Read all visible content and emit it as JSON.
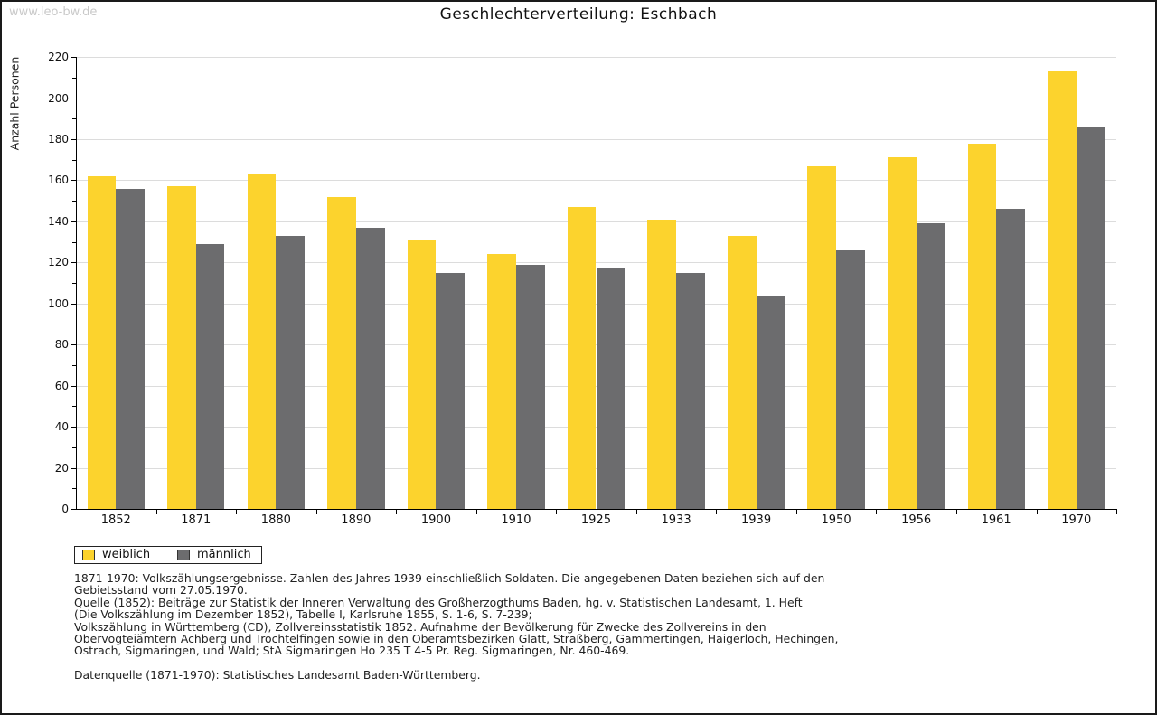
{
  "watermark": "www.leo-bw.de",
  "title": "Geschlechterverteilung: Eschbach",
  "y_axis_label": "Anzahl Personen",
  "colors": {
    "weiblich": "#fcd32d",
    "maennlich": "#6c6c6e",
    "gridline": "#dcdcdc",
    "axis": "#000000",
    "watermark": "#c9c9c9"
  },
  "legend": {
    "weiblich_label": "weiblich",
    "maennlich_label": "männlich"
  },
  "footnotes": [
    "1871-1970: Volkszählungsergebnisse. Zahlen des Jahres 1939 einschließlich Soldaten. Die angegebenen Daten beziehen sich auf den",
    "Gebietsstand vom 27.05.1970.",
    "Quelle (1852): Beiträge zur Statistik der Inneren Verwaltung des Großherzogthums Baden, hg. v. Statistischen Landesamt, 1. Heft",
    "(Die Volkszählung im Dezember 1852), Tabelle I, Karlsruhe 1855, S. 1-6, S. 7-239;",
    "Volkszählung in Württemberg (CD), Zollvereinsstatistik 1852. Aufnahme der Bevölkerung für Zwecke des Zollvereins in den",
    "Obervogteiämtern Achberg und Trochtelfingen sowie in den Oberamtsbezirken Glatt, Straßberg, Gammertingen, Haigerloch, Hechingen,",
    "Ostrach, Sigmaringen, und Wald; StA Sigmaringen Ho 235 T 4-5 Pr. Reg. Sigmaringen, Nr. 460-469."
  ],
  "datasource": "Datenquelle (1871-1970): Statistisches Landesamt Baden-Württemberg.",
  "chart_data": {
    "type": "bar",
    "title": "Geschlechterverteilung: Eschbach",
    "ylabel": "Anzahl Personen",
    "categories": [
      "1852",
      "1871",
      "1880",
      "1890",
      "1900",
      "1910",
      "1925",
      "1933",
      "1939",
      "1950",
      "1956",
      "1961",
      "1970"
    ],
    "series": [
      {
        "name": "weiblich",
        "color": "#fcd32d",
        "values": [
          162,
          157,
          163,
          152,
          131,
          124,
          147,
          141,
          133,
          167,
          171,
          178,
          213
        ]
      },
      {
        "name": "männlich",
        "color": "#6c6c6e",
        "values": [
          156,
          129,
          133,
          137,
          115,
          119,
          117,
          115,
          104,
          126,
          139,
          146,
          186
        ]
      }
    ],
    "ylim": [
      0,
      220
    ],
    "ytick_step": 20,
    "yminor_step": 10,
    "grid": true,
    "legend_position": "bottom-left"
  }
}
